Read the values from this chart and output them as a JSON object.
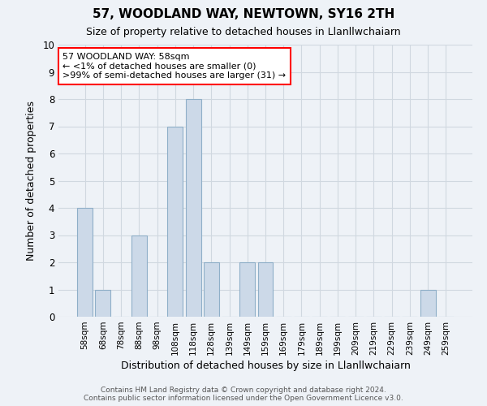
{
  "title": "57, WOODLAND WAY, NEWTOWN, SY16 2TH",
  "subtitle": "Size of property relative to detached houses in Llanllwchaiarn",
  "xlabel": "Distribution of detached houses by size in Llanllwchaiarn",
  "ylabel": "Number of detached properties",
  "categories": [
    "58sqm",
    "68sqm",
    "78sqm",
    "88sqm",
    "98sqm",
    "108sqm",
    "118sqm",
    "128sqm",
    "139sqm",
    "149sqm",
    "159sqm",
    "169sqm",
    "179sqm",
    "189sqm",
    "199sqm",
    "209sqm",
    "219sqm",
    "229sqm",
    "239sqm",
    "249sqm",
    "259sqm"
  ],
  "values": [
    4,
    1,
    0,
    3,
    0,
    7,
    8,
    2,
    0,
    2,
    2,
    0,
    0,
    0,
    0,
    0,
    0,
    0,
    0,
    1,
    0
  ],
  "bar_color": "#ccd9e8",
  "bar_edge_color": "#8fafc8",
  "ylim": [
    0,
    10
  ],
  "yticks": [
    0,
    1,
    2,
    3,
    4,
    5,
    6,
    7,
    8,
    9,
    10
  ],
  "annotation_title": "57 WOODLAND WAY: 58sqm",
  "annotation_line1": "← <1% of detached houses are smaller (0)",
  "annotation_line2": ">99% of semi-detached houses are larger (31) →",
  "annotation_box_color": "white",
  "annotation_box_edge_color": "red",
  "footer_line1": "Contains HM Land Registry data © Crown copyright and database right 2024.",
  "footer_line2": "Contains public sector information licensed under the Open Government Licence v3.0.",
  "grid_color": "#d0d8e0",
  "background_color": "#eef2f7"
}
